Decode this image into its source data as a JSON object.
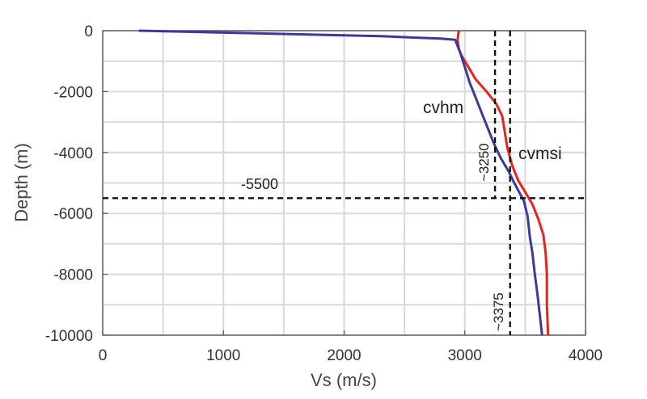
{
  "chart_data": {
    "type": "line",
    "title": "",
    "xlabel": "Vs (m/s)",
    "ylabel": "Depth (m)",
    "xlim": [
      0,
      4000
    ],
    "ylim": [
      -10000,
      0
    ],
    "x_ticks": [
      0,
      1000,
      2000,
      3000,
      4000
    ],
    "y_ticks": [
      0,
      -2000,
      -4000,
      -6000,
      -8000,
      -10000
    ],
    "x_tick_labels": [
      "0",
      "1000",
      "2000",
      "3000",
      "4000"
    ],
    "y_tick_labels": [
      "0",
      "-2000",
      "-4000",
      "-6000",
      "-8000",
      "-10000"
    ],
    "grid": true,
    "series": [
      {
        "name": "cvmsi",
        "color": "#e8231f",
        "x": [
          2950,
          2940,
          2950,
          2970,
          3030,
          3090,
          3180,
          3260,
          3310,
          3330,
          3350,
          3390,
          3440,
          3500,
          3560,
          3610,
          3650,
          3670,
          3680,
          3680,
          3690
        ],
        "y": [
          0,
          -300,
          -600,
          -800,
          -1200,
          -1600,
          -2000,
          -2400,
          -2800,
          -3300,
          -3800,
          -4400,
          -4900,
          -5300,
          -5700,
          -6200,
          -6700,
          -7300,
          -8000,
          -9000,
          -10000
        ]
      },
      {
        "name": "cvhm",
        "color": "#3a3a9c",
        "x": [
          300,
          1200,
          2300,
          2800,
          2920,
          2960,
          3000,
          3040,
          3090,
          3140,
          3190,
          3240,
          3300,
          3360,
          3410,
          3450,
          3490,
          3520,
          3540,
          3560,
          3580,
          3600,
          3620,
          3640
        ],
        "y": [
          0,
          -80,
          -180,
          -260,
          -300,
          -700,
          -1200,
          -1700,
          -2200,
          -2700,
          -3200,
          -3700,
          -4200,
          -4600,
          -5000,
          -5300,
          -5600,
          -6100,
          -6800,
          -7300,
          -8000,
          -8600,
          -9300,
          -10000
        ]
      }
    ],
    "reference_lines": [
      {
        "orientation": "vertical",
        "value": 3250,
        "label": "~3250",
        "y_range": [
          -5500,
          0
        ]
      },
      {
        "orientation": "vertical",
        "value": 3375,
        "label": "~3375",
        "y_range": [
          -10000,
          0
        ]
      },
      {
        "orientation": "horizontal",
        "value": -5500,
        "label": "-5500"
      }
    ],
    "annotations": [
      "cvhm",
      "cvmsi"
    ]
  }
}
